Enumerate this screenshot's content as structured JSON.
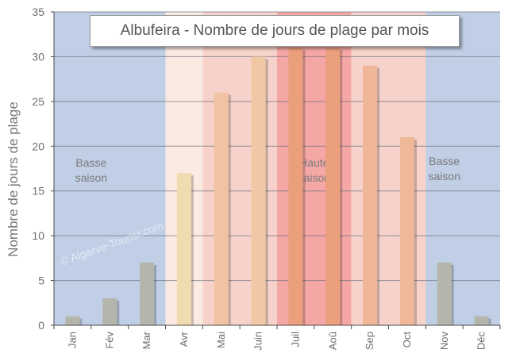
{
  "chart_data": {
    "type": "bar",
    "title": "Albufeira - Nombre de jours de plage par mois",
    "ylabel": "Nombre de jours de plage",
    "xlabel": "",
    "ylim": [
      0,
      35
    ],
    "yticks": [
      0,
      5,
      10,
      15,
      20,
      25,
      30,
      35
    ],
    "grid": true,
    "categories": [
      "Jan",
      "Fév",
      "Mar",
      "Avr",
      "Mai",
      "Juin",
      "Juil",
      "Aoû",
      "Sep",
      "Oct",
      "Nov",
      "Déc"
    ],
    "values": [
      1,
      3,
      7,
      17,
      26,
      30,
      31,
      31,
      29,
      21,
      7,
      1
    ],
    "bar_colors": [
      "#b4b5ab",
      "#b4b5ab",
      "#b4b5ab",
      "#f1dcb0",
      "#f0c3a4",
      "#f1c8a6",
      "#ec9f7c",
      "#ec9f7c",
      "#efb797",
      "#efb897",
      "#b4b5ab",
      "#b4b5ab"
    ],
    "bands": [
      {
        "start": 0,
        "end": 3,
        "color": "#c0cfe6"
      },
      {
        "start": 3,
        "end": 4,
        "color": "#fbeae2"
      },
      {
        "start": 4,
        "end": 6,
        "color": "#f7d2ca"
      },
      {
        "start": 6,
        "end": 8,
        "color": "#f5a7a5"
      },
      {
        "start": 8,
        "end": 10,
        "color": "#f7d2ca"
      },
      {
        "start": 10,
        "end": 12,
        "color": "#c0cfe6"
      }
    ],
    "annotations": [
      {
        "lines": [
          "Basse",
          "saison"
        ]
      },
      {
        "lines": [
          "Haute",
          "saison"
        ]
      },
      {
        "lines": [
          "Basse",
          "saison"
        ]
      }
    ],
    "watermark": "© Algarve-Tourist.com"
  }
}
